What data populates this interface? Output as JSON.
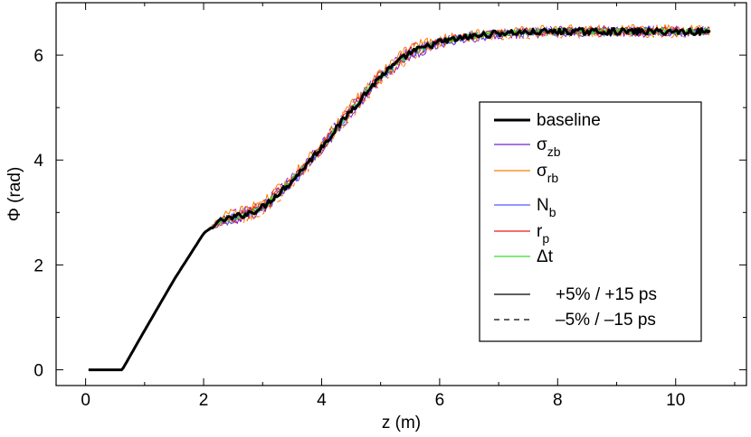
{
  "chart_data": {
    "type": "line",
    "xlabel": "z (m)",
    "ylabel": "Φ (rad)",
    "xlim": [
      -0.5,
      11.2
    ],
    "ylim": [
      -0.3,
      7.0
    ],
    "xticks": [
      0,
      2,
      4,
      6,
      8,
      10
    ],
    "xtick_labels": [
      "0",
      "2",
      "4",
      "6",
      "8",
      "10"
    ],
    "yticks": [
      0,
      2,
      4,
      6
    ],
    "ytick_labels": [
      "0",
      "2",
      "4",
      "6"
    ],
    "grid": false,
    "legend_position": "center-right",
    "anchors": {
      "x": [
        0.05,
        0.62,
        1.0,
        1.5,
        2.0,
        2.3,
        2.5,
        2.8,
        3.0,
        3.5,
        4.0,
        4.5,
        5.0,
        5.5,
        6.0,
        6.5,
        7.0,
        8.0,
        9.0,
        10.0,
        10.6
      ],
      "y": [
        0.0,
        0.0,
        0.75,
        1.72,
        2.6,
        2.85,
        2.9,
        3.0,
        3.1,
        3.6,
        4.25,
        4.95,
        5.6,
        6.05,
        6.25,
        6.35,
        6.42,
        6.45,
        6.45,
        6.45,
        6.45
      ]
    },
    "series": [
      {
        "name": "baseline",
        "label": "baseline",
        "sub": "",
        "color": "#000000",
        "width": 3.0,
        "offset": 0.0,
        "noise": 0.06
      },
      {
        "name": "sigma_zb",
        "label": "σ",
        "sub": "zb",
        "color": "#7b1fd6",
        "width": 1.0,
        "offset": -0.07,
        "noise": 0.08
      },
      {
        "name": "sigma_rb",
        "label": "σ",
        "sub": "rb",
        "color": "#ff7a00",
        "width": 1.0,
        "offset": 0.09,
        "noise": 0.09
      },
      {
        "name": "N_b",
        "label": "N",
        "sub": "b",
        "color": "#4a5cff",
        "width": 1.0,
        "offset": -0.03,
        "noise": 0.08
      },
      {
        "name": "r_p",
        "label": "r",
        "sub": "p",
        "color": "#e81b1b",
        "width": 1.0,
        "offset": 0.04,
        "noise": 0.07
      },
      {
        "name": "delta_t",
        "label": "Δt",
        "sub": "",
        "color": "#33dd33",
        "width": 1.0,
        "offset": 0.01,
        "noise": 0.06
      }
    ],
    "style_legend": [
      {
        "style": "solid",
        "label": "+5% / +15 ps"
      },
      {
        "style": "dashed",
        "label": "–5% / –15 ps"
      }
    ]
  }
}
